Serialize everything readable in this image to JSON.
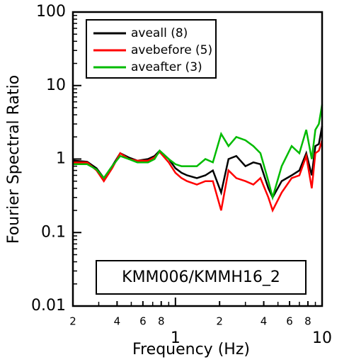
{
  "chart_data": {
    "type": "line",
    "xlabel": "Frequency (Hz)",
    "ylabel": "Fourier Spectral Ratio",
    "annotation": "KMM006/KMMH16_2",
    "log_x": true,
    "log_y": true,
    "legend": "upper left",
    "x": [
      0.2,
      0.25,
      0.29,
      0.325,
      0.37,
      0.42,
      0.48,
      0.55,
      0.65,
      0.72,
      0.78,
      0.9,
      1.0,
      1.1,
      1.2,
      1.4,
      1.6,
      1.8,
      2.05,
      2.3,
      2.6,
      3.0,
      3.4,
      3.8,
      4.3,
      4.6,
      5.3,
      6.2,
      7.0,
      7.8,
      8.5,
      9.0,
      9.5,
      10.0
    ],
    "series": [
      {
        "name": "aveall (8)",
        "color": "#000000",
        "values": [
          0.95,
          0.92,
          0.75,
          0.55,
          0.8,
          1.2,
          1.05,
          0.95,
          1.0,
          1.1,
          1.3,
          1.0,
          0.75,
          0.65,
          0.6,
          0.55,
          0.6,
          0.7,
          0.35,
          1.0,
          1.1,
          0.8,
          0.9,
          0.85,
          0.4,
          0.3,
          0.5,
          0.6,
          0.7,
          1.2,
          0.6,
          1.5,
          1.6,
          2.8
        ]
      },
      {
        "name": "avebefore (5)",
        "color": "#ff0000",
        "values": [
          0.9,
          0.9,
          0.7,
          0.5,
          0.75,
          1.2,
          1.0,
          0.95,
          0.95,
          1.05,
          1.25,
          0.9,
          0.65,
          0.55,
          0.5,
          0.45,
          0.5,
          0.5,
          0.2,
          0.7,
          0.55,
          0.5,
          0.45,
          0.55,
          0.3,
          0.2,
          0.35,
          0.55,
          0.6,
          1.1,
          0.4,
          1.2,
          1.3,
          1.8
        ]
      },
      {
        "name": "aveafter (3)",
        "color": "#00bb00",
        "values": [
          0.85,
          0.85,
          0.72,
          0.55,
          0.8,
          1.1,
          1.0,
          0.9,
          0.9,
          1.0,
          1.3,
          1.0,
          0.85,
          0.8,
          0.8,
          0.8,
          1.0,
          0.9,
          2.2,
          1.5,
          2.0,
          1.8,
          1.5,
          1.2,
          0.5,
          0.3,
          0.8,
          1.5,
          1.2,
          2.5,
          1.0,
          2.5,
          3.0,
          5.5
        ]
      }
    ],
    "xlim": [
      0.2,
      10
    ],
    "ylim": [
      0.01,
      100
    ],
    "xticks": [
      {
        "value": 0.2,
        "label": "2"
      },
      {
        "value": 0.4,
        "label": "4"
      },
      {
        "value": 0.6,
        "label": "6"
      },
      {
        "value": 0.8,
        "label": "8"
      },
      1,
      2,
      4,
      6,
      8,
      10
    ],
    "xminorticks": [
      0.3,
      0.5,
      0.7,
      0.9,
      3,
      5,
      7,
      9
    ],
    "yticks": [
      0.01,
      0.1,
      1,
      10,
      100
    ]
  }
}
